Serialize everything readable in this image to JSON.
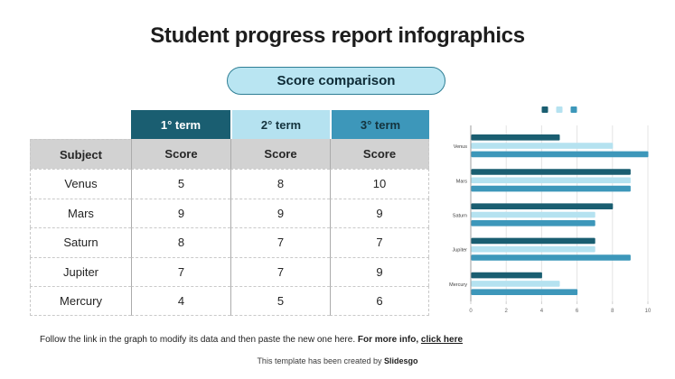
{
  "title": "Student progress report infographics",
  "badge": {
    "label": "Score comparison"
  },
  "table": {
    "term_headers": [
      "1° term",
      "2° term",
      "3° term"
    ],
    "subject_header": "Subject",
    "score_header": "Score",
    "rows": [
      {
        "subject": "Venus",
        "scores": [
          "5",
          "8",
          "10"
        ]
      },
      {
        "subject": "Mars",
        "scores": [
          "9",
          "9",
          "9"
        ]
      },
      {
        "subject": "Saturn",
        "scores": [
          "8",
          "7",
          "7"
        ]
      },
      {
        "subject": "Jupiter",
        "scores": [
          "7",
          "7",
          "9"
        ]
      },
      {
        "subject": "Mercury",
        "scores": [
          "4",
          "5",
          "6"
        ]
      }
    ]
  },
  "chart_data": {
    "type": "bar",
    "orientation": "horizontal",
    "title": "",
    "categories": [
      "Venus",
      "Mars",
      "Saturn",
      "Jupiter",
      "Mercury"
    ],
    "series": [
      {
        "name": "1° term",
        "color": "#1A5E71",
        "values": [
          5,
          9,
          8,
          7,
          4
        ]
      },
      {
        "name": "2° term",
        "color": "#B5E2F0",
        "values": [
          8,
          9,
          7,
          7,
          5
        ]
      },
      {
        "name": "3° term",
        "color": "#3D97BA",
        "values": [
          10,
          9,
          7,
          9,
          6
        ]
      }
    ],
    "xlim": [
      0,
      10
    ],
    "xticks": [
      0,
      2,
      4,
      6,
      8,
      10
    ],
    "grid": true,
    "legend_position": "top"
  },
  "footer": {
    "note_regular": "Follow the link in the graph to modify its data and then paste the new one here. ",
    "note_bold": "For more info, ",
    "note_link": "click here",
    "credit_prefix": "This template has been created by ",
    "credit_brand": "Slidesgo"
  },
  "colors": {
    "term1": "#1A5E71",
    "term2": "#B5E2F0",
    "term3": "#3D97BA",
    "header_gray": "#D2D2D2",
    "pill_bg": "#B9E5F2",
    "pill_border": "#2E7E94"
  }
}
